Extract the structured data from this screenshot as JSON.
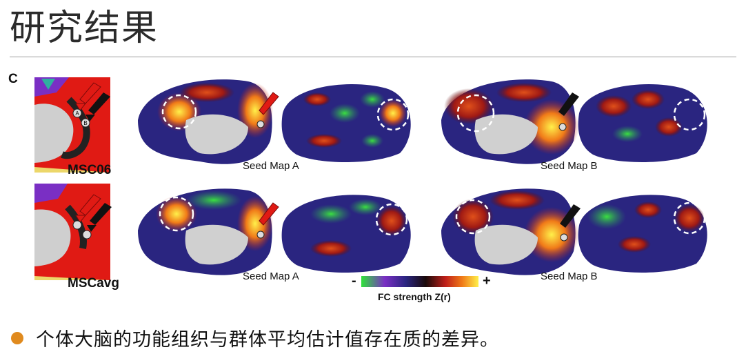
{
  "slide": {
    "title": "研究结果",
    "panel_letter": "C",
    "subjects": [
      "MSC06",
      "MSCavg"
    ],
    "seed_labels": [
      "Seed Map A",
      "Seed Map B",
      "Seed Map A",
      "Seed Map B"
    ],
    "seed_markers": [
      "A",
      "B"
    ],
    "colorbar": {
      "minus": "-",
      "plus": "+",
      "label": "FC strength Z(r)",
      "colors": [
        "#2fe23a",
        "#7a2fc4",
        "#2a2580",
        "#1a0a0a",
        "#c0201a",
        "#f07a18",
        "#fff04a"
      ]
    },
    "bullet": "个体大脑的功能组织与群体平均估计值存在质的差异。",
    "accent_color": "#e08a1e"
  }
}
